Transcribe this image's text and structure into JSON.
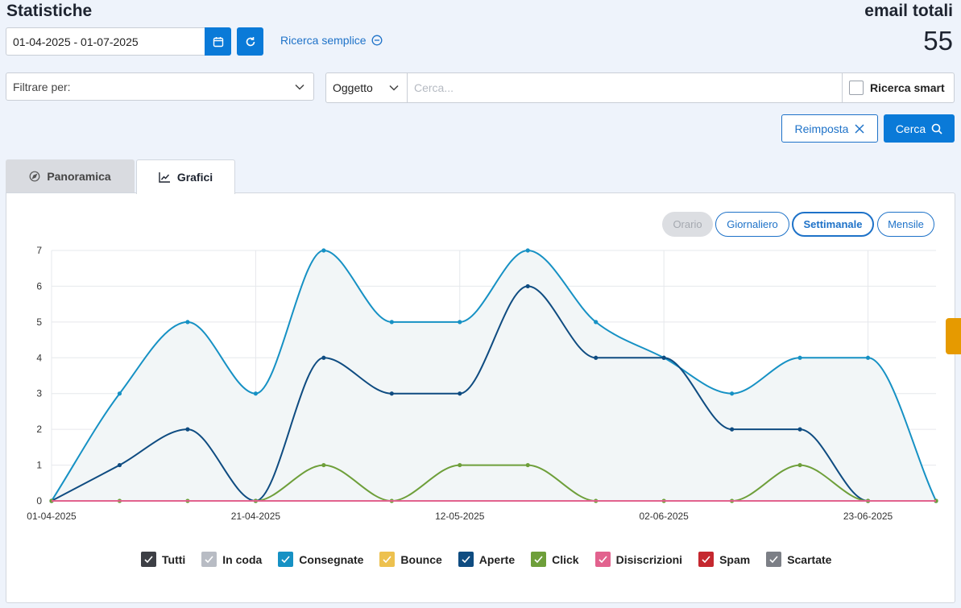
{
  "page": {
    "title": "Statistiche",
    "total_label": "email totali",
    "total_value": "55"
  },
  "filters": {
    "date_range": "01-04-2025 - 01-07-2025",
    "simple_search_link": "Ricerca semplice",
    "filter_by_placeholder": "Filtrare per:",
    "field_select": "Oggetto",
    "search_placeholder": "Cerca...",
    "smart_search_label": "Ricerca smart",
    "reset_label": "Reimposta",
    "search_label": "Cerca"
  },
  "tabs": [
    {
      "label": "Panoramica",
      "active": false
    },
    {
      "label": "Grafici",
      "active": true
    }
  ],
  "granularity": {
    "hourly": "Orario",
    "daily": "Giornaliero",
    "weekly": "Settimanale",
    "monthly": "Mensile",
    "selected": "weekly"
  },
  "legend": [
    {
      "label": "Tutti",
      "color": "#3d3f45"
    },
    {
      "label": "In coda",
      "color": "#b8bcc4"
    },
    {
      "label": "Consegnate",
      "color": "#1691c4"
    },
    {
      "label": "Bounce",
      "color": "#edc14f"
    },
    {
      "label": "Aperte",
      "color": "#0f4c81"
    },
    {
      "label": "Click",
      "color": "#6e9f3a"
    },
    {
      "label": "Disiscrizioni",
      "color": "#e2628e"
    },
    {
      "label": "Spam",
      "color": "#c5282f"
    },
    {
      "label": "Scartate",
      "color": "#7c7f86"
    }
  ],
  "chart_data": {
    "type": "area",
    "x_tick_labels": [
      "01-04-2025",
      "21-04-2025",
      "12-05-2025",
      "02-06-2025",
      "23-06-2025"
    ],
    "ylim": [
      0,
      7
    ],
    "y_ticks": [
      0,
      1,
      2,
      3,
      4,
      5,
      6,
      7
    ],
    "grid": true,
    "series": [
      {
        "name": "Consegnate",
        "color": "#1691c4",
        "fill": true,
        "values": [
          0,
          3,
          5,
          3,
          7,
          5,
          5,
          7,
          5,
          4,
          3,
          4,
          4,
          0
        ]
      },
      {
        "name": "Aperte",
        "color": "#0f4c81",
        "fill": false,
        "values": [
          0,
          1,
          2,
          0,
          4,
          3,
          3,
          6,
          4,
          4,
          2,
          2,
          0,
          0
        ]
      },
      {
        "name": "Click",
        "color": "#6e9f3a",
        "fill": false,
        "values": [
          0,
          0,
          0,
          0,
          1,
          0,
          1,
          1,
          0,
          0,
          0,
          1,
          0,
          0
        ]
      },
      {
        "name": "Disiscrizioni",
        "color": "#e2628e",
        "fill": false,
        "values": [
          0,
          0,
          0,
          0,
          0,
          0,
          0,
          0,
          0,
          0,
          0,
          0,
          0,
          0
        ]
      }
    ]
  }
}
